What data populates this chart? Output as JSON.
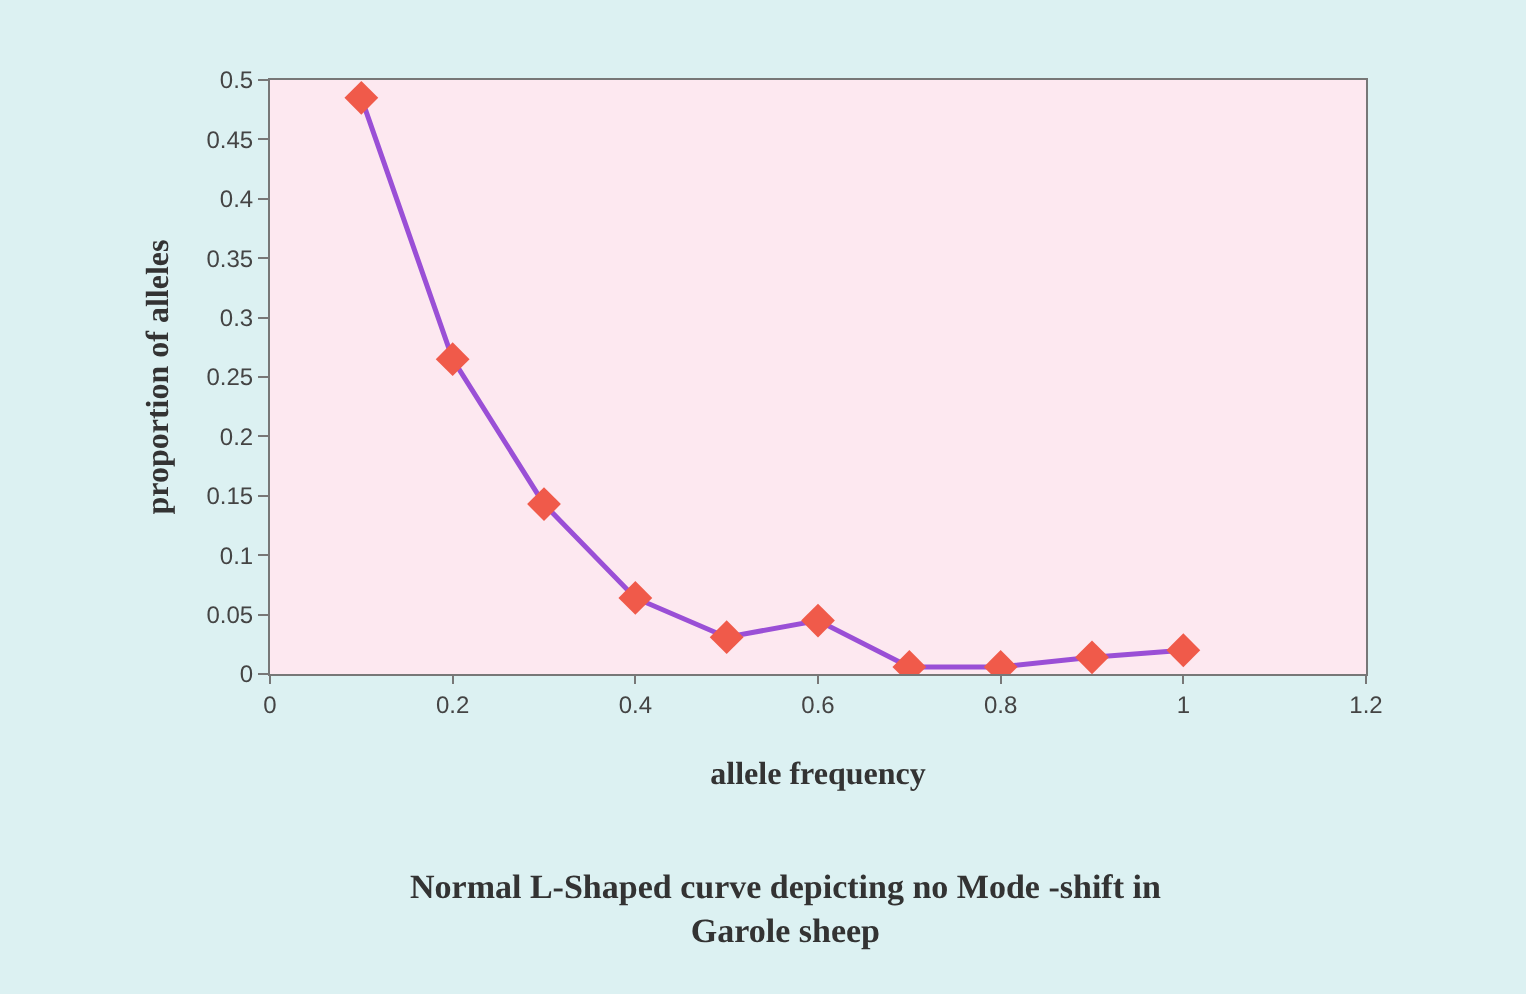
{
  "chart_data": {
    "type": "line",
    "title": "Normal L-Shaped curve depicting no Mode -shift in Garole sheep",
    "xlabel": "allele frequency",
    "ylabel": "proportion of alleles",
    "x": [
      0.1,
      0.2,
      0.3,
      0.4,
      0.5,
      0.6,
      0.7,
      0.8,
      0.9,
      1
    ],
    "series": [
      {
        "color": "#9a4fd6",
        "colors": [
          "#f05a4a",
          "#f05a4a",
          "#f05a4a",
          "#f05a4a",
          "#f05a4a",
          "#f05a4a",
          "#f05a4a",
          "#f05a4a",
          "#f05a4a",
          "#f05a4a"
        ],
        "values": [
          0.485,
          0.265,
          0.143,
          0.064,
          0.031,
          0.045,
          0.006,
          0.006,
          0.014,
          0.02
        ]
      }
    ],
    "xlim": [
      0,
      1.2
    ],
    "xticks": [
      0,
      0.2,
      0.4,
      0.6,
      0.8,
      1,
      1.2
    ],
    "ylim": [
      0,
      0.5
    ],
    "yticks": [
      0,
      0.05,
      0.1,
      0.15,
      0.2,
      0.25,
      0.3,
      0.35,
      0.4,
      0.45,
      0.5
    ],
    "grid": false,
    "marker": "diamond",
    "line_style": "solid"
  }
}
